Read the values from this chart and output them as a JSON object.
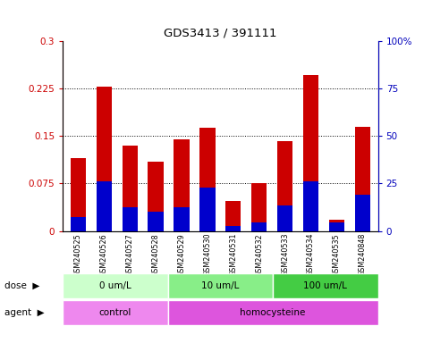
{
  "title": "GDS3413 / 391111",
  "samples": [
    "GSM240525",
    "GSM240526",
    "GSM240527",
    "GSM240528",
    "GSM240529",
    "GSM240530",
    "GSM240531",
    "GSM240532",
    "GSM240533",
    "GSM240534",
    "GSM240535",
    "GSM240848"
  ],
  "red_values": [
    0.115,
    0.228,
    0.135,
    0.11,
    0.145,
    0.163,
    0.048,
    0.075,
    0.142,
    0.247,
    0.018,
    0.165
  ],
  "blue_percentile": [
    7.3,
    26.0,
    12.7,
    10.0,
    12.7,
    22.7,
    2.7,
    4.3,
    13.3,
    26.0,
    4.3,
    19.3
  ],
  "ylim_left": [
    0,
    0.3
  ],
  "ylim_right": [
    0,
    100
  ],
  "yticks_left": [
    0,
    0.075,
    0.15,
    0.225,
    0.3
  ],
  "yticks_right": [
    0,
    25,
    50,
    75,
    100
  ],
  "ytick_labels_left": [
    "0",
    "0.075",
    "0.15",
    "0.225",
    "0.3"
  ],
  "ytick_labels_right": [
    "0",
    "25",
    "50",
    "75",
    "100%"
  ],
  "dose_groups": [
    {
      "label": "0 um/L",
      "start": 0,
      "end": 4,
      "color": "#ccffcc"
    },
    {
      "label": "10 um/L",
      "start": 4,
      "end": 8,
      "color": "#88ee88"
    },
    {
      "label": "100 um/L",
      "start": 8,
      "end": 12,
      "color": "#44cc44"
    }
  ],
  "agent_groups": [
    {
      "label": "control",
      "start": 0,
      "end": 4,
      "color": "#ee88ee"
    },
    {
      "label": "homocysteine",
      "start": 4,
      "end": 12,
      "color": "#dd55dd"
    }
  ],
  "bar_color_red": "#cc0000",
  "bar_color_blue": "#0000cc",
  "bar_width": 0.6,
  "bg_color": "#ffffff",
  "xtick_bg_color": "#c8c8c8",
  "left_tick_color": "#cc0000",
  "right_tick_color": "#0000bb"
}
